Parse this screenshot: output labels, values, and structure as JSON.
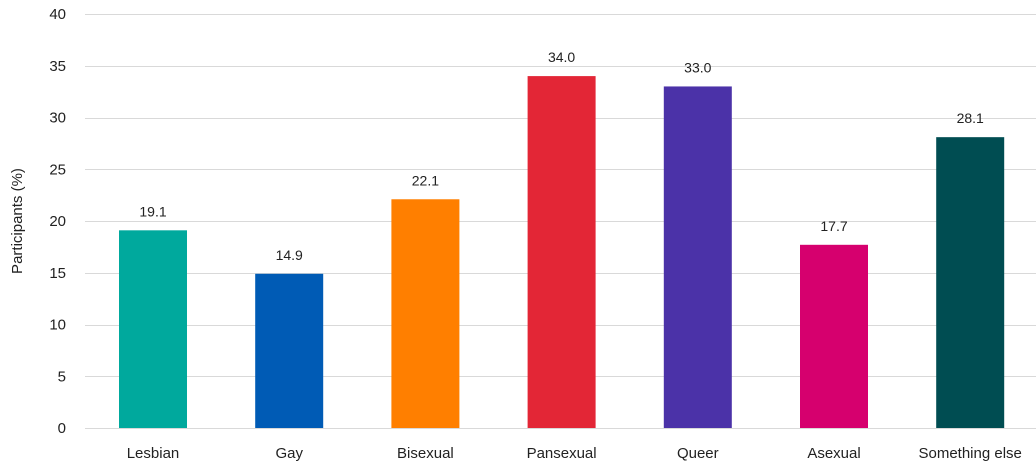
{
  "chart_data": {
    "type": "bar",
    "title": "",
    "xlabel": "",
    "ylabel": "Participants (%)",
    "ylim": [
      0,
      40
    ],
    "yticks": [
      0,
      5,
      10,
      15,
      20,
      25,
      30,
      35,
      40
    ],
    "grid": true,
    "categories": [
      "Lesbian",
      "Gay",
      "Bisexual",
      "Pansexual",
      "Queer",
      "Asexual",
      "Something else"
    ],
    "values": [
      19.1,
      14.9,
      22.1,
      34.0,
      33.0,
      17.7,
      28.1
    ],
    "data_labels": [
      "19.1",
      "14.9",
      "22.1",
      "34.0",
      "33.0",
      "17.7",
      "28.1"
    ],
    "colors": [
      "#00a99d",
      "#005bb5",
      "#ff7f00",
      "#e32636",
      "#4b32a8",
      "#d6006e",
      "#004d52"
    ]
  }
}
